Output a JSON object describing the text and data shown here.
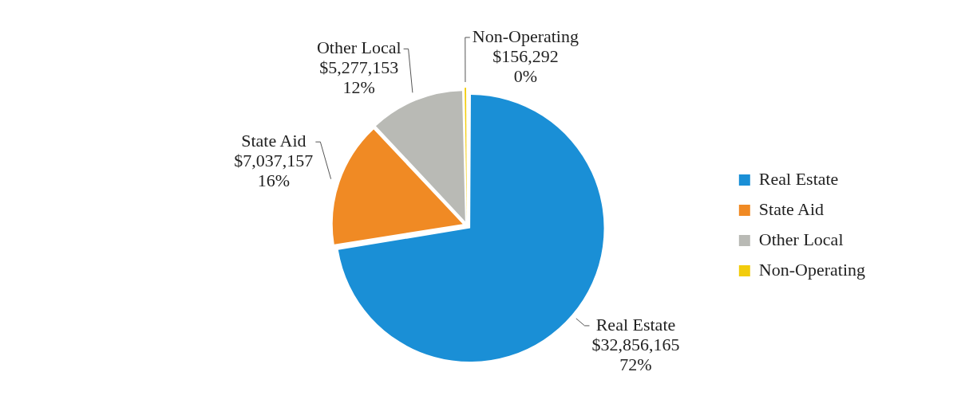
{
  "chart_data": {
    "type": "pie",
    "categories": [
      "Real Estate",
      "State Aid",
      "Other Local",
      "Non-Operating"
    ],
    "values": [
      32856165,
      7037157,
      5277153,
      156292
    ],
    "colors": [
      "#1a8fd6",
      "#f08a24",
      "#b9bab5",
      "#f2cc0c"
    ],
    "value_labels": [
      "$32,856,165\n72%",
      "$7,037,157\n16%",
      "$5,277,153\n12%",
      "$156,292\n0%"
    ],
    "legend": "right"
  }
}
